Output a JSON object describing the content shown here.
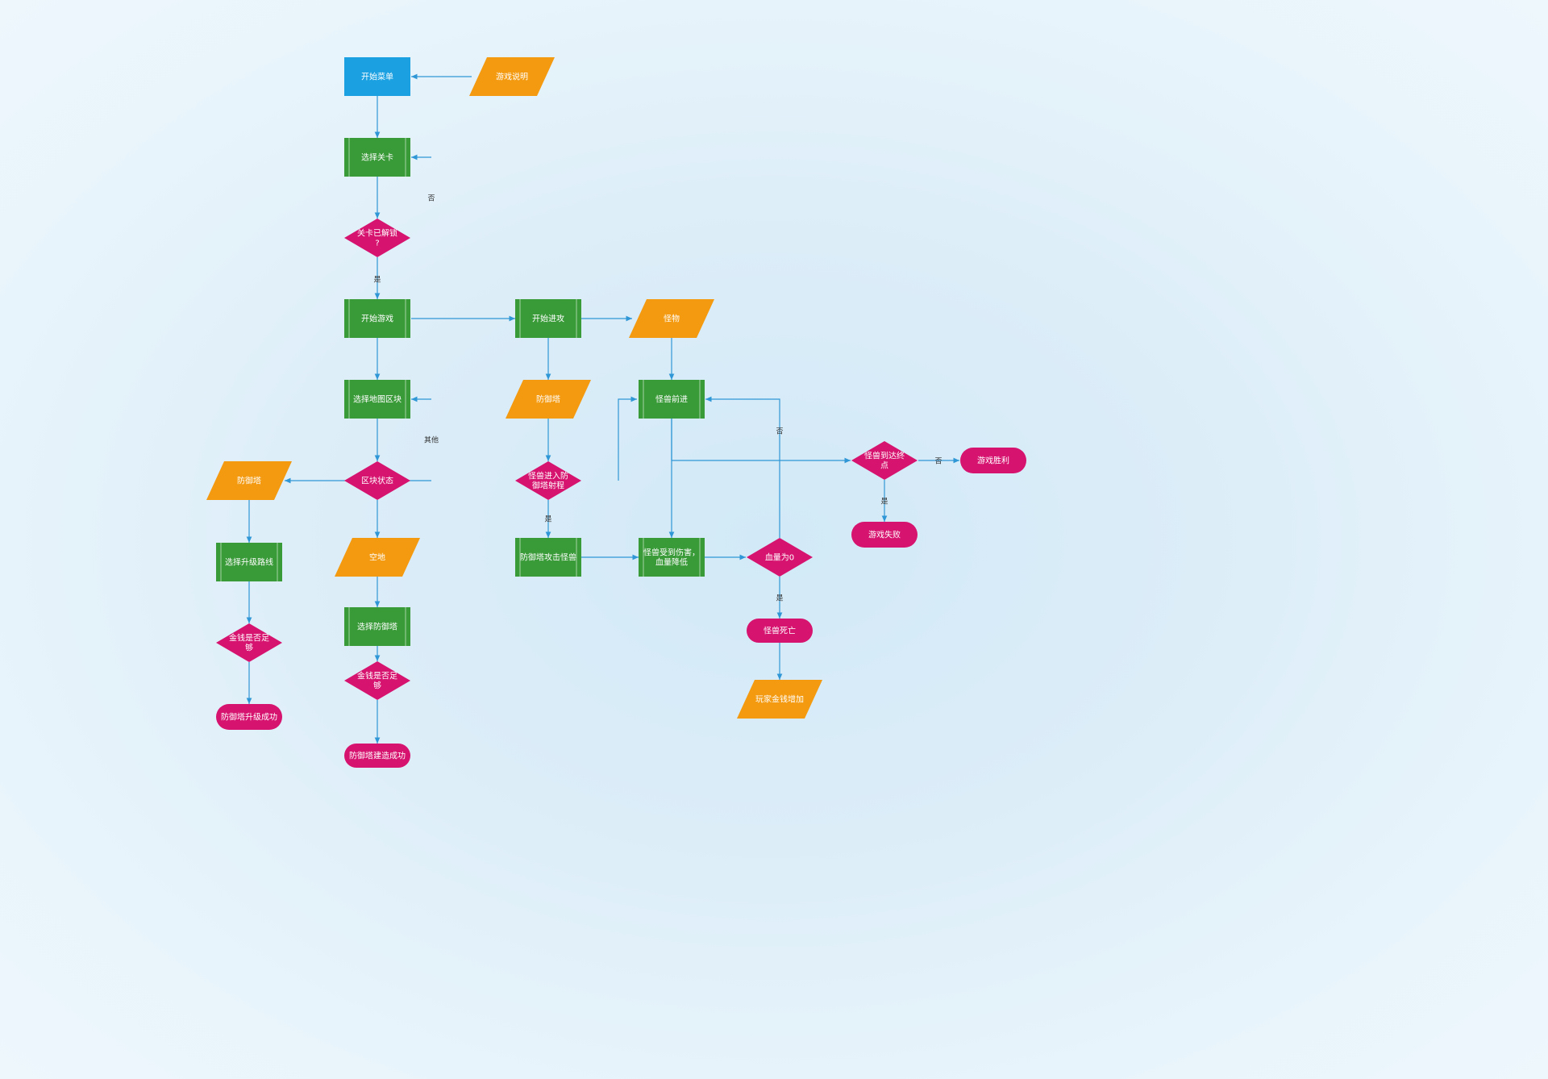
{
  "colors": {
    "blue": "#1ba1e2",
    "green": "#399a38",
    "orange": "#f39a10",
    "magenta": "#d6136f",
    "line": "#2f97d6",
    "node_text": "#ffffff",
    "label_text": "#333333"
  },
  "diagram": {
    "nodes": [
      {
        "id": "start-menu",
        "text": "开始菜单",
        "shape": "rect",
        "color": "blue"
      },
      {
        "id": "game-intro",
        "text": "游戏说明",
        "shape": "parallelogram",
        "color": "orange"
      },
      {
        "id": "select-level",
        "text": "选择关卡",
        "shape": "process",
        "color": "green"
      },
      {
        "id": "level-unlocked",
        "text": "关卡已解锁?",
        "shape": "diamond",
        "color": "magenta"
      },
      {
        "id": "start-game",
        "text": "开始游戏",
        "shape": "process",
        "color": "green"
      },
      {
        "id": "start-attack",
        "text": "开始进攻",
        "shape": "process",
        "color": "green"
      },
      {
        "id": "monster",
        "text": "怪物",
        "shape": "parallelogram",
        "color": "orange"
      },
      {
        "id": "select-map-block",
        "text": "选择地图区块",
        "shape": "process",
        "color": "green"
      },
      {
        "id": "tower-b",
        "text": "防御塔",
        "shape": "parallelogram",
        "color": "orange"
      },
      {
        "id": "monster-advance",
        "text": "怪兽前进",
        "shape": "process",
        "color": "green"
      },
      {
        "id": "tower-a",
        "text": "防御塔",
        "shape": "parallelogram",
        "color": "orange"
      },
      {
        "id": "block-state",
        "text": "区块状态",
        "shape": "diamond",
        "color": "magenta"
      },
      {
        "id": "in-range",
        "text": "怪兽进入防御塔射程",
        "shape": "diamond",
        "color": "magenta"
      },
      {
        "id": "reach-end",
        "text": "怪兽到达终点",
        "shape": "diamond",
        "color": "magenta"
      },
      {
        "id": "game-win",
        "text": "游戏胜利",
        "shape": "terminal",
        "color": "magenta"
      },
      {
        "id": "select-upgrade",
        "text": "选择升级路线",
        "shape": "process",
        "color": "green"
      },
      {
        "id": "empty",
        "text": "空地",
        "shape": "parallelogram",
        "color": "orange"
      },
      {
        "id": "tower-attack",
        "text": "防御塔攻击怪兽",
        "shape": "process",
        "color": "green"
      },
      {
        "id": "monster-damaged",
        "text": "怪兽受到伤害，血量降低",
        "shape": "process",
        "color": "green"
      },
      {
        "id": "hp-zero",
        "text": "血量为0",
        "shape": "diamond",
        "color": "magenta"
      },
      {
        "id": "game-fail",
        "text": "游戏失败",
        "shape": "terminal",
        "color": "magenta"
      },
      {
        "id": "select-tower",
        "text": "选择防御塔",
        "shape": "process",
        "color": "green"
      },
      {
        "id": "monster-dead",
        "text": "怪兽死亡",
        "shape": "terminal",
        "color": "magenta"
      },
      {
        "id": "gold-enough-a",
        "text": "金钱是否足够",
        "shape": "diamond",
        "color": "magenta"
      },
      {
        "id": "gold-enough-b",
        "text": "金钱是否足够",
        "shape": "diamond",
        "color": "magenta"
      },
      {
        "id": "gold-increase",
        "text": "玩家金钱增加",
        "shape": "parallelogram",
        "color": "orange"
      },
      {
        "id": "upgrade-success",
        "text": "防御塔升级成功",
        "shape": "terminal",
        "color": "magenta"
      },
      {
        "id": "build-success",
        "text": "防御塔建造成功",
        "shape": "terminal",
        "color": "magenta"
      }
    ],
    "edge_labels": [
      {
        "id": "no-unlock",
        "text": "否"
      },
      {
        "id": "yes-unlock",
        "text": "是"
      },
      {
        "id": "other-state",
        "text": "其他"
      },
      {
        "id": "yes-inrange",
        "text": "是"
      },
      {
        "id": "no-hpzero",
        "text": "否"
      },
      {
        "id": "no-end",
        "text": "否"
      },
      {
        "id": "yes-end",
        "text": "是"
      },
      {
        "id": "yes-hpzero",
        "text": "是"
      }
    ]
  }
}
